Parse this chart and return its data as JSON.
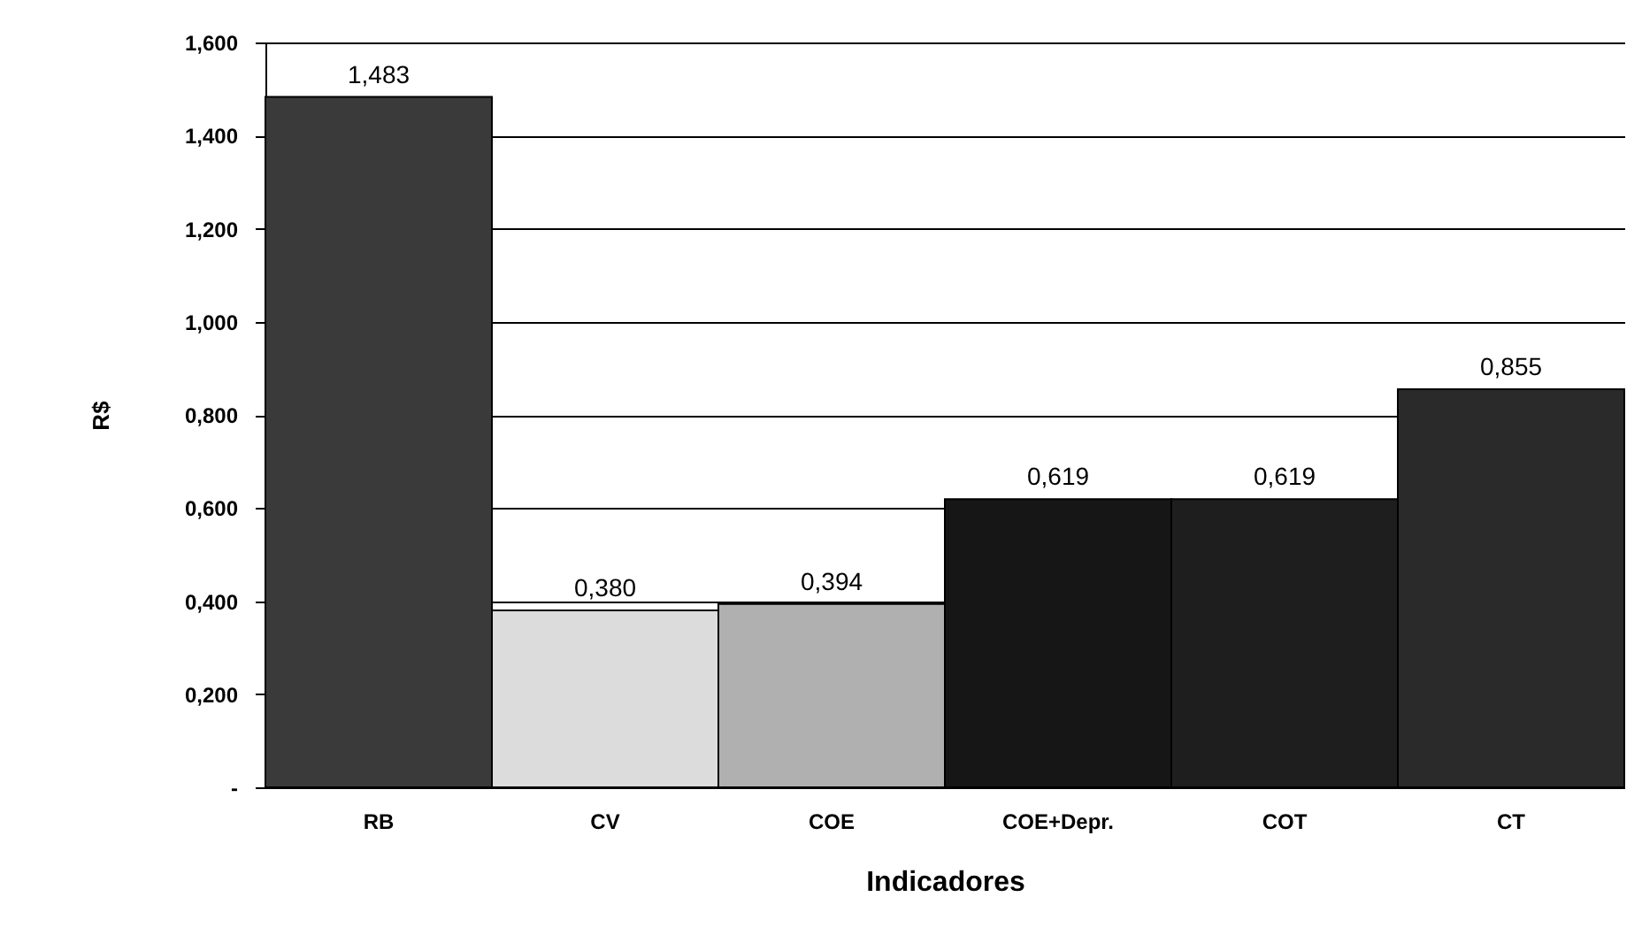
{
  "chart_data": {
    "type": "bar",
    "xlabel": "Indicadores",
    "ylabel": "R$",
    "categories": [
      "RB",
      "CV",
      "COE",
      "COE+Depr.",
      "COT",
      "CT"
    ],
    "values": [
      1.483,
      0.38,
      0.394,
      0.619,
      0.619,
      0.855
    ],
    "value_labels": [
      "1,483",
      "0,380",
      "0,394",
      "0,619",
      "0,619",
      "0,855"
    ],
    "colors": [
      "#3a3a3a",
      "#dcdcdc",
      "#b0b0b0",
      "#161616",
      "#1e1e1e",
      "#2a2a2a"
    ],
    "ylim": [
      0,
      1.6
    ],
    "yticks": [
      {
        "value": 0,
        "label": "-"
      },
      {
        "value": 0.2,
        "label": "0,200"
      },
      {
        "value": 0.4,
        "label": "0,400"
      },
      {
        "value": 0.6,
        "label": "0,600"
      },
      {
        "value": 0.8,
        "label": "0,800"
      },
      {
        "value": 1.0,
        "label": "1,000"
      },
      {
        "value": 1.2,
        "label": "1,200"
      },
      {
        "value": 1.4,
        "label": "1,400"
      },
      {
        "value": 1.6,
        "label": "1,600"
      }
    ],
    "grid": "y"
  }
}
